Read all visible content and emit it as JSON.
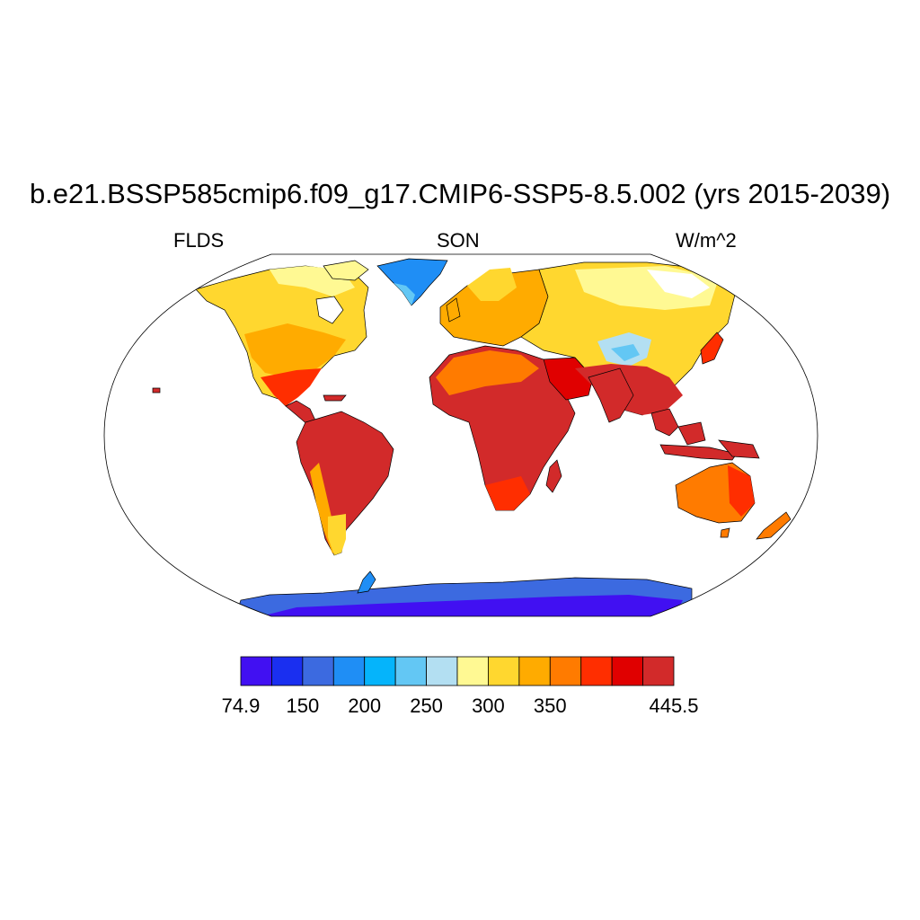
{
  "title": "b.e21.BSSP585cmip6.f09_g17.CMIP6-SSP5-8.5.002 (yrs 2015-2039)",
  "left_string": "FLDS",
  "center_string": "SON",
  "right_string": "W/m^2",
  "colorbar": {
    "colors": [
      "#4110f2",
      "#1a2ff0",
      "#3c6ae0",
      "#1f8ef5",
      "#05b4fb",
      "#63c7f4",
      "#b3dff2",
      "#fff993",
      "#ffd72f",
      "#ffab00",
      "#ff7b00",
      "#ff2e00",
      "#e00000",
      "#d22a2a"
    ],
    "tick_labels": [
      {
        "index": 0,
        "text": "74.9"
      },
      {
        "index": 2,
        "text": "150"
      },
      {
        "index": 4,
        "text": "200"
      },
      {
        "index": 6,
        "text": "250"
      },
      {
        "index": 8,
        "text": "300"
      },
      {
        "index": 10,
        "text": "350"
      },
      {
        "index": 14,
        "text": "445.5"
      }
    ]
  }
}
